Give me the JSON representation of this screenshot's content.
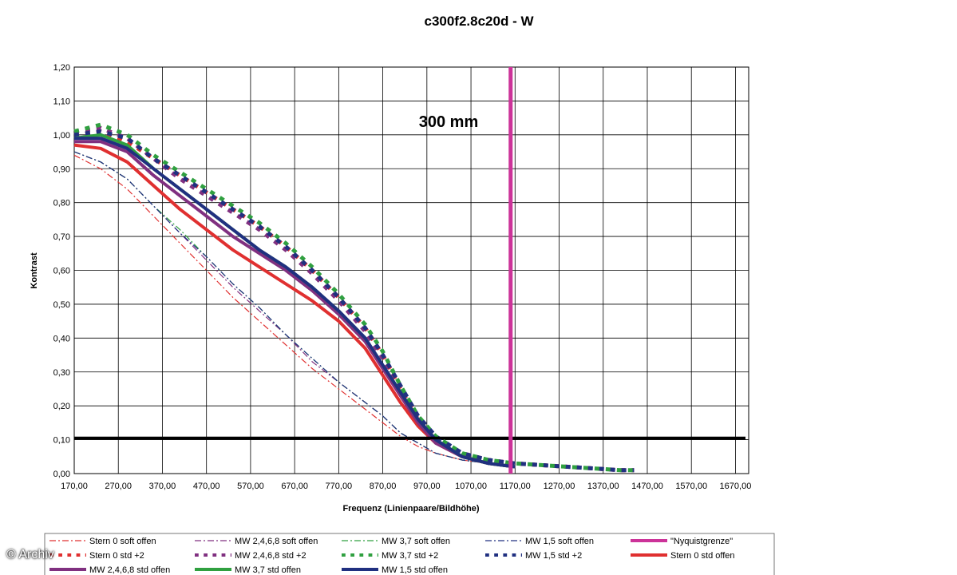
{
  "copyright": "© Archiv",
  "chart_data": {
    "type": "line",
    "title": "c300f2.8c20d - W",
    "annotation": "300 mm",
    "xlabel": "Frequenz (Linienpaare/Bildhöhe)",
    "ylabel": "Kontrast",
    "xlim": [
      170,
      1700
    ],
    "ylim": [
      0,
      1.2
    ],
    "x_ticks": [
      "170,00",
      "270,00",
      "370,00",
      "470,00",
      "570,00",
      "670,00",
      "770,00",
      "870,00",
      "970,00",
      "1070,00",
      "1170,00",
      "1270,00",
      "1370,00",
      "1470,00",
      "1570,00",
      "1670,00"
    ],
    "y_ticks": [
      "0,00",
      "0,10",
      "0,20",
      "0,30",
      "0,40",
      "0,50",
      "0,60",
      "0,70",
      "0,80",
      "0,90",
      "1,00",
      "1,10",
      "1,20"
    ],
    "grid": true,
    "legend_position": "bottom",
    "reference_lines": [
      {
        "orientation": "horizontal",
        "value": 0.105,
        "color": "#000000"
      },
      {
        "orientation": "vertical",
        "value": 1160,
        "color": "#cc3399",
        "name": "\"Nyquistgrenze\""
      }
    ],
    "series": [
      {
        "name": "Stern 0 soft offen",
        "color": "#e03030",
        "style": "dashdot",
        "width": 1.2,
        "x": [
          170,
          230,
          290,
          350,
          410,
          470,
          530,
          590,
          650,
          710,
          770,
          830,
          870,
          910,
          950,
          990,
          1050,
          1110,
          1170
        ],
        "y": [
          0.94,
          0.9,
          0.84,
          0.76,
          0.68,
          0.6,
          0.52,
          0.45,
          0.38,
          0.31,
          0.25,
          0.19,
          0.15,
          0.11,
          0.08,
          0.06,
          0.04,
          0.03,
          0.02
        ]
      },
      {
        "name": "MW 2,4,6,8 soft offen",
        "color": "#803080",
        "style": "dashdot",
        "width": 1.2,
        "x": [
          170,
          230,
          290,
          350,
          410,
          470,
          530,
          590,
          650,
          710,
          770,
          830,
          870,
          910,
          950,
          990,
          1050,
          1110,
          1170
        ],
        "y": [
          0.95,
          0.92,
          0.87,
          0.79,
          0.71,
          0.63,
          0.55,
          0.48,
          0.41,
          0.33,
          0.27,
          0.21,
          0.17,
          0.12,
          0.09,
          0.06,
          0.04,
          0.03,
          0.02
        ]
      },
      {
        "name": "MW 3,7 soft offen",
        "color": "#30a040",
        "style": "dashdot",
        "width": 1.2,
        "x": [
          170,
          230,
          290,
          350,
          410,
          470,
          530,
          590,
          650,
          710,
          770,
          830,
          870,
          910,
          950,
          990,
          1050,
          1110,
          1170
        ],
        "y": [
          0.95,
          0.92,
          0.87,
          0.79,
          0.72,
          0.64,
          0.56,
          0.49,
          0.41,
          0.34,
          0.27,
          0.21,
          0.17,
          0.12,
          0.09,
          0.06,
          0.04,
          0.03,
          0.02
        ]
      },
      {
        "name": "MW 1,5 soft offen",
        "color": "#203080",
        "style": "dashdot",
        "width": 1.2,
        "x": [
          170,
          230,
          290,
          350,
          410,
          470,
          530,
          590,
          650,
          710,
          770,
          830,
          870,
          910,
          950,
          990,
          1050,
          1110,
          1170
        ],
        "y": [
          0.95,
          0.92,
          0.87,
          0.79,
          0.71,
          0.64,
          0.56,
          0.49,
          0.41,
          0.34,
          0.27,
          0.21,
          0.17,
          0.12,
          0.09,
          0.06,
          0.04,
          0.03,
          0.02
        ]
      },
      {
        "name": "Stern 0 std +2",
        "color": "#e03030",
        "style": "dashed",
        "width": 5,
        "x": [
          170,
          230,
          290,
          350,
          410,
          470,
          530,
          590,
          650,
          710,
          770,
          830,
          870,
          910,
          950,
          990,
          1050,
          1110,
          1170,
          1230,
          1290,
          1350,
          1410,
          1440
        ],
        "y": [
          1.0,
          1.01,
          0.98,
          0.93,
          0.88,
          0.83,
          0.78,
          0.73,
          0.67,
          0.6,
          0.52,
          0.43,
          0.35,
          0.25,
          0.16,
          0.1,
          0.06,
          0.04,
          0.03,
          0.025,
          0.02,
          0.015,
          0.01,
          0.01
        ]
      },
      {
        "name": "MW 2,4,6,8 std +2",
        "color": "#803080",
        "style": "dashed",
        "width": 5,
        "x": [
          170,
          230,
          290,
          350,
          410,
          470,
          530,
          590,
          650,
          710,
          770,
          830,
          870,
          910,
          950,
          990,
          1050,
          1110,
          1170,
          1230,
          1290,
          1350,
          1410,
          1440
        ],
        "y": [
          1.01,
          1.02,
          0.99,
          0.93,
          0.87,
          0.82,
          0.77,
          0.72,
          0.66,
          0.59,
          0.51,
          0.42,
          0.34,
          0.25,
          0.16,
          0.1,
          0.06,
          0.04,
          0.03,
          0.025,
          0.02,
          0.015,
          0.01,
          0.01
        ]
      },
      {
        "name": "MW 3,7 std +2",
        "color": "#30a040",
        "style": "dashed",
        "width": 5,
        "x": [
          170,
          230,
          290,
          350,
          410,
          470,
          530,
          590,
          650,
          710,
          770,
          830,
          870,
          910,
          950,
          990,
          1050,
          1110,
          1170,
          1230,
          1290,
          1350,
          1410,
          1440
        ],
        "y": [
          1.01,
          1.03,
          1.0,
          0.94,
          0.89,
          0.84,
          0.79,
          0.74,
          0.68,
          0.61,
          0.53,
          0.44,
          0.36,
          0.26,
          0.17,
          0.11,
          0.06,
          0.04,
          0.03,
          0.025,
          0.02,
          0.015,
          0.01,
          0.01
        ]
      },
      {
        "name": "MW 1,5 std +2",
        "color": "#203080",
        "style": "dashed",
        "width": 5,
        "x": [
          170,
          230,
          290,
          350,
          410,
          470,
          530,
          590,
          650,
          710,
          770,
          830,
          870,
          910,
          950,
          990,
          1050,
          1110,
          1170,
          1230,
          1290,
          1350,
          1410,
          1440
        ],
        "y": [
          1.0,
          1.01,
          0.99,
          0.93,
          0.88,
          0.83,
          0.78,
          0.73,
          0.67,
          0.6,
          0.52,
          0.43,
          0.35,
          0.26,
          0.17,
          0.11,
          0.06,
          0.04,
          0.03,
          0.025,
          0.02,
          0.015,
          0.01,
          0.01
        ]
      },
      {
        "name": "Stern 0 std offen",
        "color": "#e03030",
        "style": "solid",
        "width": 4,
        "x": [
          170,
          230,
          290,
          350,
          410,
          470,
          530,
          590,
          650,
          710,
          770,
          830,
          870,
          910,
          950,
          990,
          1050,
          1110,
          1170
        ],
        "y": [
          0.97,
          0.96,
          0.92,
          0.85,
          0.78,
          0.72,
          0.66,
          0.61,
          0.56,
          0.51,
          0.45,
          0.37,
          0.29,
          0.21,
          0.14,
          0.09,
          0.05,
          0.03,
          0.02
        ]
      },
      {
        "name": "MW 2,4,6,8 std offen",
        "color": "#803080",
        "style": "solid",
        "width": 4,
        "x": [
          170,
          230,
          290,
          350,
          410,
          470,
          530,
          590,
          650,
          710,
          770,
          830,
          870,
          910,
          950,
          990,
          1050,
          1110,
          1170
        ],
        "y": [
          0.98,
          0.98,
          0.95,
          0.88,
          0.82,
          0.76,
          0.7,
          0.65,
          0.6,
          0.54,
          0.47,
          0.39,
          0.31,
          0.23,
          0.15,
          0.09,
          0.05,
          0.03,
          0.02
        ]
      },
      {
        "name": "MW 3,7 std offen",
        "color": "#30a040",
        "style": "solid",
        "width": 4,
        "x": [
          170,
          230,
          290,
          350,
          410,
          470,
          530,
          590,
          650,
          710,
          770,
          830,
          870,
          910,
          950,
          990,
          1050,
          1110,
          1170
        ],
        "y": [
          0.99,
          1.0,
          0.97,
          0.9,
          0.84,
          0.78,
          0.72,
          0.66,
          0.61,
          0.55,
          0.48,
          0.4,
          0.32,
          0.24,
          0.16,
          0.1,
          0.05,
          0.03,
          0.02
        ]
      },
      {
        "name": "MW 1,5 std offen",
        "color": "#203080",
        "style": "solid",
        "width": 4,
        "x": [
          170,
          230,
          290,
          350,
          410,
          470,
          530,
          590,
          650,
          710,
          770,
          830,
          870,
          910,
          950,
          990,
          1050,
          1110,
          1170
        ],
        "y": [
          0.99,
          0.99,
          0.96,
          0.9,
          0.84,
          0.78,
          0.72,
          0.66,
          0.61,
          0.55,
          0.48,
          0.4,
          0.32,
          0.24,
          0.16,
          0.1,
          0.05,
          0.03,
          0.02
        ]
      }
    ]
  }
}
